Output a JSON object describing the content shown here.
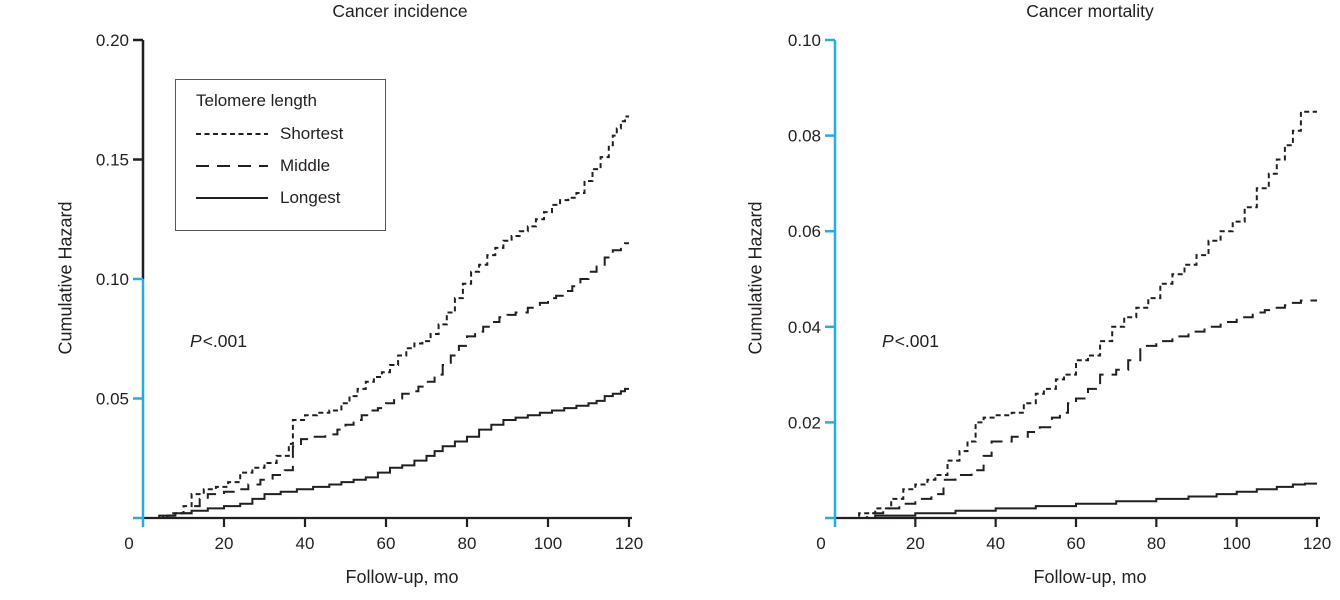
{
  "colors": {
    "ink": "#231f20",
    "axis_highlight": "#29abe2"
  },
  "legend": {
    "title": "Telomere length",
    "items": [
      {
        "key": "shortest",
        "label": "Shortest",
        "line_style": "short-dash"
      },
      {
        "key": "middle",
        "label": "Middle",
        "line_style": "long-dash"
      },
      {
        "key": "longest",
        "label": "Longest",
        "line_style": "solid"
      }
    ],
    "position": "upper-left-of-incidence-panel"
  },
  "chart_data": [
    {
      "type": "line",
      "subtype": "cumulative-hazard-step-curves",
      "title": "Cancer incidence",
      "x_label": "Follow-up, mo",
      "y_label": "Cumulative Hazard",
      "p_label": "P",
      "p_value": "<.001",
      "x_range": [
        0,
        120
      ],
      "y_range": [
        0,
        0.2
      ],
      "x_ticks": [
        0,
        20,
        40,
        60,
        80,
        100,
        120
      ],
      "y_ticks": [
        {
          "value": 0.2,
          "label": "0.20"
        },
        {
          "value": 0.15,
          "label": "0.15"
        },
        {
          "value": 0.1,
          "label": "0.10"
        },
        {
          "value": 0.05,
          "label": "0.05"
        },
        {
          "value": 0,
          "label": ""
        }
      ],
      "grid": false,
      "axis_highlight_range": [
        0,
        0.1
      ],
      "series": [
        {
          "name": "Shortest",
          "line_style": "short-dash",
          "points": [
            [
              0,
              0
            ],
            [
              4,
              0.001
            ],
            [
              7,
              0.002
            ],
            [
              10,
              0.005
            ],
            [
              12,
              0.01
            ],
            [
              15,
              0.012
            ],
            [
              18,
              0.013
            ],
            [
              21,
              0.015
            ],
            [
              24,
              0.019
            ],
            [
              27,
              0.021
            ],
            [
              30,
              0.023
            ],
            [
              33,
              0.026
            ],
            [
              36,
              0.031
            ],
            [
              37,
              0.041
            ],
            [
              40,
              0.043
            ],
            [
              43,
              0.044
            ],
            [
              46,
              0.045
            ],
            [
              49,
              0.048
            ],
            [
              51,
              0.051
            ],
            [
              53,
              0.054
            ],
            [
              55,
              0.057
            ],
            [
              57,
              0.059
            ],
            [
              59,
              0.061
            ],
            [
              61,
              0.064
            ],
            [
              63,
              0.068
            ],
            [
              65,
              0.071
            ],
            [
              67,
              0.073
            ],
            [
              69,
              0.074
            ],
            [
              71,
              0.077
            ],
            [
              73,
              0.081
            ],
            [
              75,
              0.086
            ],
            [
              77,
              0.092
            ],
            [
              79,
              0.098
            ],
            [
              81,
              0.103
            ],
            [
              83,
              0.106
            ],
            [
              85,
              0.11
            ],
            [
              87,
              0.113
            ],
            [
              89,
              0.116
            ],
            [
              91,
              0.118
            ],
            [
              93,
              0.12
            ],
            [
              95,
              0.122
            ],
            [
              97,
              0.125
            ],
            [
              99,
              0.128
            ],
            [
              101,
              0.131
            ],
            [
              103,
              0.133
            ],
            [
              105,
              0.134
            ],
            [
              107,
              0.136
            ],
            [
              109,
              0.141
            ],
            [
              111,
              0.146
            ],
            [
              113,
              0.151
            ],
            [
              115,
              0.156
            ],
            [
              116,
              0.16
            ],
            [
              117,
              0.163
            ],
            [
              118,
              0.166
            ],
            [
              119,
              0.168
            ],
            [
              120,
              0.168
            ]
          ]
        },
        {
          "name": "Middle",
          "line_style": "long-dash",
          "points": [
            [
              0,
              0
            ],
            [
              6,
              0.001
            ],
            [
              9,
              0.002
            ],
            [
              12,
              0.005
            ],
            [
              14,
              0.008
            ],
            [
              16,
              0.01
            ],
            [
              20,
              0.011
            ],
            [
              23,
              0.012
            ],
            [
              26,
              0.014
            ],
            [
              29,
              0.016
            ],
            [
              32,
              0.018
            ],
            [
              35,
              0.02
            ],
            [
              37,
              0.03
            ],
            [
              39,
              0.033
            ],
            [
              42,
              0.034
            ],
            [
              45,
              0.035
            ],
            [
              48,
              0.037
            ],
            [
              50,
              0.039
            ],
            [
              52,
              0.041
            ],
            [
              54,
              0.043
            ],
            [
              56,
              0.045
            ],
            [
              58,
              0.046
            ],
            [
              60,
              0.048
            ],
            [
              62,
              0.05
            ],
            [
              64,
              0.052
            ],
            [
              66,
              0.053
            ],
            [
              68,
              0.055
            ],
            [
              70,
              0.057
            ],
            [
              72,
              0.06
            ],
            [
              74,
              0.064
            ],
            [
              76,
              0.068
            ],
            [
              78,
              0.072
            ],
            [
              80,
              0.076
            ],
            [
              82,
              0.078
            ],
            [
              84,
              0.08
            ],
            [
              86,
              0.082
            ],
            [
              88,
              0.084
            ],
            [
              90,
              0.085
            ],
            [
              92,
              0.086
            ],
            [
              95,
              0.088
            ],
            [
              98,
              0.09
            ],
            [
              100,
              0.092
            ],
            [
              102,
              0.093
            ],
            [
              104,
              0.095
            ],
            [
              106,
              0.097
            ],
            [
              108,
              0.1
            ],
            [
              110,
              0.103
            ],
            [
              112,
              0.106
            ],
            [
              114,
              0.109
            ],
            [
              116,
              0.112
            ],
            [
              118,
              0.114
            ],
            [
              119,
              0.115
            ],
            [
              120,
              0.115
            ]
          ]
        },
        {
          "name": "Longest",
          "line_style": "solid",
          "points": [
            [
              0,
              0
            ],
            [
              5,
              0.001
            ],
            [
              8,
              0.002
            ],
            [
              12,
              0.003
            ],
            [
              16,
              0.004
            ],
            [
              20,
              0.005
            ],
            [
              24,
              0.006
            ],
            [
              27,
              0.008
            ],
            [
              30,
              0.01
            ],
            [
              34,
              0.011
            ],
            [
              38,
              0.012
            ],
            [
              42,
              0.013
            ],
            [
              46,
              0.014
            ],
            [
              49,
              0.015
            ],
            [
              52,
              0.016
            ],
            [
              55,
              0.017
            ],
            [
              58,
              0.019
            ],
            [
              61,
              0.021
            ],
            [
              64,
              0.022
            ],
            [
              67,
              0.024
            ],
            [
              70,
              0.026
            ],
            [
              72,
              0.028
            ],
            [
              74,
              0.03
            ],
            [
              77,
              0.032
            ],
            [
              80,
              0.034
            ],
            [
              83,
              0.037
            ],
            [
              86,
              0.039
            ],
            [
              89,
              0.041
            ],
            [
              92,
              0.042
            ],
            [
              95,
              0.043
            ],
            [
              98,
              0.044
            ],
            [
              101,
              0.045
            ],
            [
              104,
              0.046
            ],
            [
              107,
              0.047
            ],
            [
              110,
              0.048
            ],
            [
              112,
              0.049
            ],
            [
              114,
              0.051
            ],
            [
              116,
              0.052
            ],
            [
              118,
              0.053
            ],
            [
              119,
              0.054
            ],
            [
              120,
              0.054
            ]
          ]
        }
      ]
    },
    {
      "type": "line",
      "subtype": "cumulative-hazard-step-curves",
      "title": "Cancer mortality",
      "x_label": "Follow-up, mo",
      "y_label": "Cumulative Hazard",
      "p_label": "P",
      "p_value": "<.001",
      "x_range": [
        0,
        120
      ],
      "y_range": [
        0,
        0.1
      ],
      "x_ticks": [
        0,
        20,
        40,
        60,
        80,
        100,
        120
      ],
      "y_ticks": [
        {
          "value": 0.1,
          "label": "0.10"
        },
        {
          "value": 0.08,
          "label": "0.08"
        },
        {
          "value": 0.06,
          "label": "0.06"
        },
        {
          "value": 0.04,
          "label": "0.04"
        },
        {
          "value": 0.02,
          "label": "0.02"
        },
        {
          "value": 0,
          "label": ""
        }
      ],
      "grid": false,
      "axis_highlight_range": [
        0,
        0.1
      ],
      "series": [
        {
          "name": "Shortest",
          "line_style": "short-dash",
          "points": [
            [
              0,
              0
            ],
            [
              6,
              0.001
            ],
            [
              10,
              0.002
            ],
            [
              14,
              0.004
            ],
            [
              17,
              0.006
            ],
            [
              20,
              0.007
            ],
            [
              23,
              0.008
            ],
            [
              25,
              0.009
            ],
            [
              28,
              0.012
            ],
            [
              31,
              0.014
            ],
            [
              33,
              0.016
            ],
            [
              35,
              0.02
            ],
            [
              37,
              0.021
            ],
            [
              40,
              0.0215
            ],
            [
              44,
              0.022
            ],
            [
              47,
              0.024
            ],
            [
              50,
              0.026
            ],
            [
              52,
              0.027
            ],
            [
              55,
              0.029
            ],
            [
              57,
              0.03
            ],
            [
              60,
              0.033
            ],
            [
              63,
              0.034
            ],
            [
              66,
              0.037
            ],
            [
              69,
              0.04
            ],
            [
              72,
              0.042
            ],
            [
              75,
              0.044
            ],
            [
              78,
              0.046
            ],
            [
              81,
              0.049
            ],
            [
              84,
              0.051
            ],
            [
              87,
              0.053
            ],
            [
              90,
              0.055
            ],
            [
              93,
              0.058
            ],
            [
              96,
              0.06
            ],
            [
              99,
              0.062
            ],
            [
              102,
              0.065
            ],
            [
              105,
              0.069
            ],
            [
              108,
              0.072
            ],
            [
              110,
              0.075
            ],
            [
              112,
              0.078
            ],
            [
              114,
              0.081
            ],
            [
              116,
              0.085
            ],
            [
              120,
              0.085
            ]
          ]
        },
        {
          "name": "Middle",
          "line_style": "long-dash",
          "points": [
            [
              0,
              0
            ],
            [
              8,
              0.001
            ],
            [
              12,
              0.002
            ],
            [
              16,
              0.003
            ],
            [
              20,
              0.004
            ],
            [
              24,
              0.005
            ],
            [
              27,
              0.008
            ],
            [
              30,
              0.009
            ],
            [
              34,
              0.01
            ],
            [
              37,
              0.013
            ],
            [
              39,
              0.016
            ],
            [
              44,
              0.017
            ],
            [
              48,
              0.018
            ],
            [
              51,
              0.019
            ],
            [
              54,
              0.021
            ],
            [
              56,
              0.022
            ],
            [
              58,
              0.024
            ],
            [
              60,
              0.025
            ],
            [
              63,
              0.027
            ],
            [
              66,
              0.03
            ],
            [
              70,
              0.031
            ],
            [
              73,
              0.033
            ],
            [
              76,
              0.036
            ],
            [
              80,
              0.037
            ],
            [
              84,
              0.038
            ],
            [
              88,
              0.039
            ],
            [
              92,
              0.04
            ],
            [
              96,
              0.041
            ],
            [
              100,
              0.042
            ],
            [
              104,
              0.043
            ],
            [
              107,
              0.0435
            ],
            [
              109,
              0.044
            ],
            [
              112,
              0.0445
            ],
            [
              114,
              0.045
            ],
            [
              116,
              0.0455
            ],
            [
              119,
              0.0455
            ],
            [
              120,
              0.0455
            ]
          ]
        },
        {
          "name": "Longest",
          "line_style": "solid",
          "points": [
            [
              0,
              0
            ],
            [
              10,
              0.0005
            ],
            [
              20,
              0.001
            ],
            [
              30,
              0.0015
            ],
            [
              40,
              0.002
            ],
            [
              50,
              0.0025
            ],
            [
              60,
              0.003
            ],
            [
              70,
              0.0035
            ],
            [
              80,
              0.004
            ],
            [
              88,
              0.0045
            ],
            [
              95,
              0.005
            ],
            [
              100,
              0.0055
            ],
            [
              105,
              0.006
            ],
            [
              110,
              0.0065
            ],
            [
              114,
              0.007
            ],
            [
              117,
              0.0072
            ],
            [
              120,
              0.0072
            ]
          ]
        }
      ]
    }
  ]
}
